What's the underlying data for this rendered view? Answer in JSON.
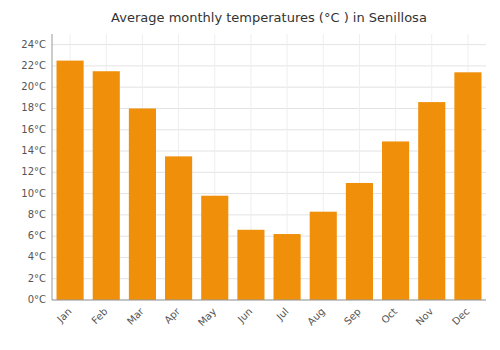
{
  "chart_data": {
    "type": "bar",
    "title": "Average monthly temperatures (°C ) in Senillosa",
    "categories": [
      "Jan",
      "Feb",
      "Mar",
      "Apr",
      "May",
      "Jun",
      "Jul",
      "Aug",
      "Sep",
      "Oct",
      "Nov",
      "Dec"
    ],
    "values": [
      22.5,
      21.5,
      18.0,
      13.5,
      9.8,
      6.6,
      6.2,
      8.3,
      11.0,
      14.9,
      18.6,
      21.4
    ],
    "color": "#F0900A",
    "ylim": [
      0,
      25
    ],
    "yticks": [
      {
        "value": 0,
        "label": "0°C"
      },
      {
        "value": 2,
        "label": "2°C"
      },
      {
        "value": 4,
        "label": "4°C"
      },
      {
        "value": 6,
        "label": "6°C"
      },
      {
        "value": 8,
        "label": "8°C"
      },
      {
        "value": 10,
        "label": "10°C"
      },
      {
        "value": 12,
        "label": "12°C"
      },
      {
        "value": 14,
        "label": "14°C"
      },
      {
        "value": 16,
        "label": "16°C"
      },
      {
        "value": 18,
        "label": "18°C"
      },
      {
        "value": 20,
        "label": "20°C"
      },
      {
        "value": 22,
        "label": "22°C"
      },
      {
        "value": 24,
        "label": "24°C"
      }
    ],
    "grid": true
  }
}
